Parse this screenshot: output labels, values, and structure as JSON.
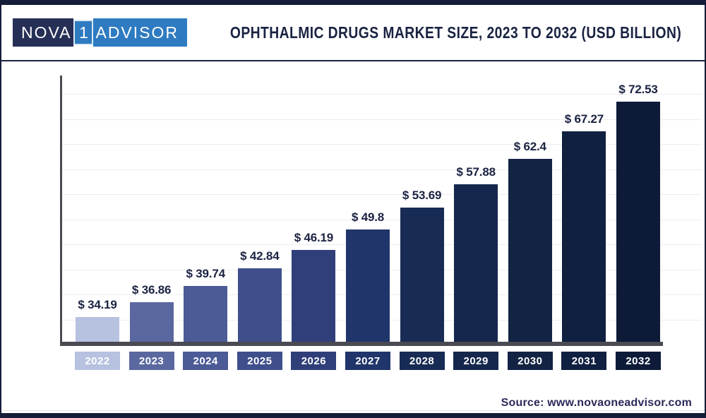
{
  "header": {
    "logo": {
      "part1": "NOVA",
      "part2": "1",
      "part3": "ADVISOR"
    },
    "title": "OPHTHALMIC DRUGS MARKET SIZE, 2023 TO 2032 (USD BILLION)"
  },
  "chart_data": {
    "type": "bar",
    "title": "Ophthalmic Drugs Market Size, 2023 to 2032 (USD Billion)",
    "categories": [
      "2022",
      "2023",
      "2024",
      "2025",
      "2026",
      "2027",
      "2028",
      "2029",
      "2030",
      "2031",
      "2032"
    ],
    "values": [
      34.19,
      36.86,
      39.74,
      42.84,
      46.19,
      49.8,
      53.69,
      57.88,
      62.4,
      67.27,
      72.53
    ],
    "value_labels": [
      "$ 34.19",
      "$ 36.86",
      "$ 39.74",
      "$ 42.84",
      "$ 46.19",
      "$ 49.8",
      "$ 53.69",
      "$ 57.88",
      "$ 62.4",
      "$ 67.27",
      "$ 72.53"
    ],
    "value_prefix": "$ ",
    "unit": "USD Billion",
    "xlabel": "",
    "ylabel": "",
    "grid": true,
    "legend": false,
    "approx_visible_value_axis_range": [
      29.8,
      74
    ],
    "bar_colors": [
      "#b7c1e0",
      "#5a689f",
      "#4c5b96",
      "#3f4f8c",
      "#303f7a",
      "#20356a",
      "#182b55",
      "#15274d",
      "#132344",
      "#102040",
      "#0d1b39"
    ],
    "value_label_color": "#1b2342",
    "axis_color": "#4a4a52",
    "gridline_color": "#ededf0"
  },
  "footer": {
    "source_label": "Source: www.novaoneadvisor.com"
  },
  "colors": {
    "frame_border": "#161d38",
    "title_text": "#1a2342",
    "logo_dark_bg": "#262f56",
    "logo_blue_bg": "#2e7bc1",
    "source_text": "#2a2a5a",
    "background": "#ffffff"
  }
}
